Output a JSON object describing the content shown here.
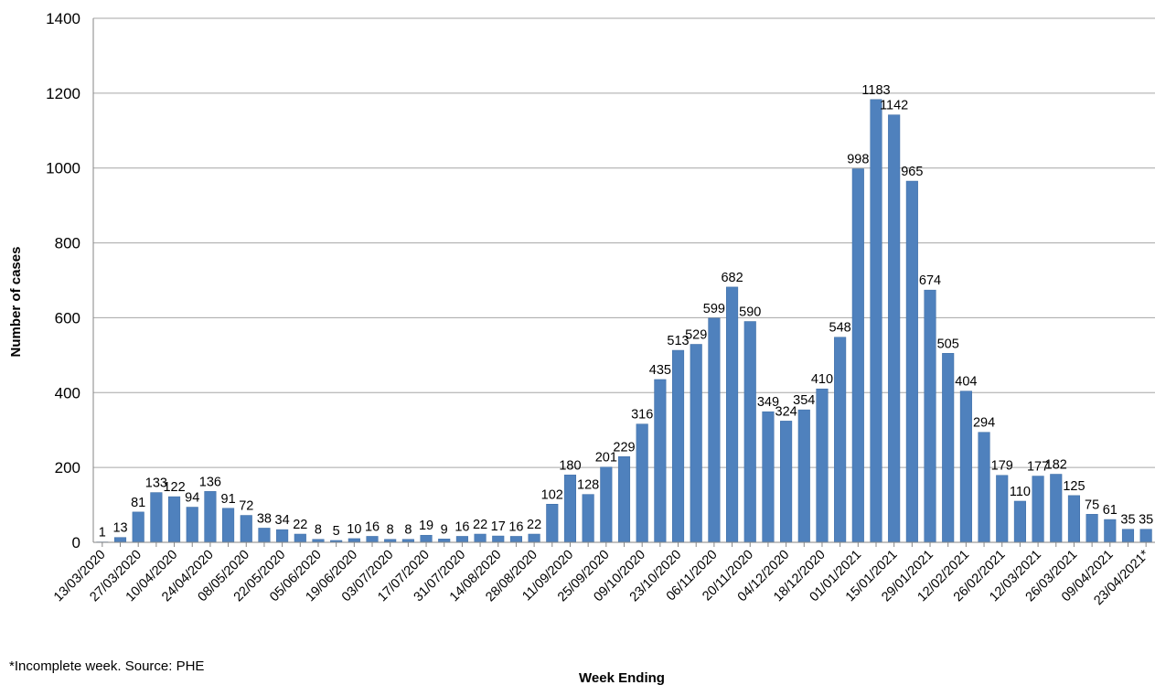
{
  "footnote": "*Incomplete week. Source: PHE",
  "colors": {
    "bar": "#4f81bd",
    "bar_edge": "#3a6aa3",
    "grid": "#a6a6a6",
    "axis": "#868686"
  },
  "chart_data": {
    "type": "bar",
    "title": "",
    "xlabel": "Week Ending",
    "ylabel": "Number of cases",
    "ylim": [
      0,
      1400
    ],
    "yticks": [
      0,
      200,
      400,
      600,
      800,
      1000,
      1200,
      1400
    ],
    "grid": true,
    "legend": "none",
    "tick_labels": [
      "13/03/2020",
      "27/03/2020",
      "10/04/2020",
      "24/04/2020",
      "08/05/2020",
      "22/05/2020",
      "05/06/2020",
      "19/06/2020",
      "03/07/2020",
      "17/07/2020",
      "31/07/2020",
      "14/08/2020",
      "28/08/2020",
      "11/09/2020",
      "25/09/2020",
      "09/10/2020",
      "23/10/2020",
      "06/11/2020",
      "20/11/2020",
      "04/12/2020",
      "18/12/2020",
      "01/01/2021",
      "15/01/2021",
      "29/01/2021",
      "12/02/2021",
      "26/02/2021",
      "12/03/2021",
      "26/03/2021",
      "09/04/2021",
      "23/04/2021*"
    ],
    "values": [
      1,
      13,
      81,
      133,
      122,
      94,
      136,
      91,
      72,
      38,
      34,
      22,
      8,
      5,
      10,
      16,
      8,
      8,
      19,
      9,
      16,
      22,
      17,
      16,
      22,
      102,
      180,
      128,
      201,
      229,
      316,
      435,
      513,
      529,
      599,
      682,
      590,
      349,
      324,
      354,
      410,
      548,
      998,
      1183,
      1142,
      965,
      674,
      505,
      404,
      294,
      179,
      110,
      177,
      182,
      125,
      75,
      61,
      35,
      35
    ]
  }
}
